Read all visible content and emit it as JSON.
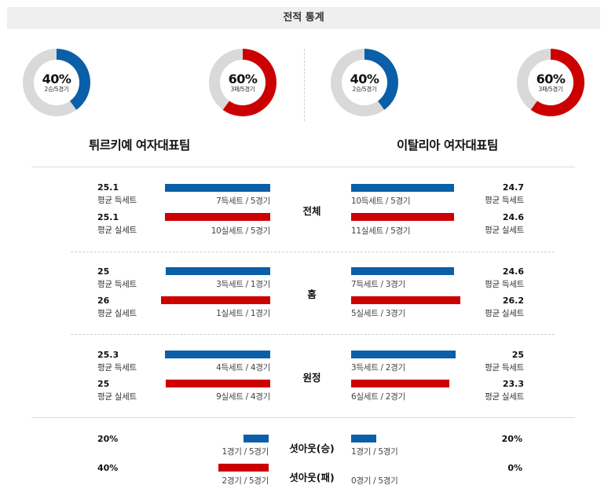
{
  "header": {
    "title": "전적 통계"
  },
  "colors": {
    "win": "#0b5ea8",
    "loss": "#cc0000",
    "track": "#d9d9d9"
  },
  "teams": {
    "left": {
      "name": "튀르키예 여자대표팀",
      "win_donut": {
        "pct": "40%",
        "sub": "2승/5경기",
        "fill": 0.4
      },
      "loss_donut": {
        "pct": "60%",
        "sub": "3패/5경기",
        "fill": 0.6
      }
    },
    "right": {
      "name": "이탈리아 여자대표팀",
      "win_donut": {
        "pct": "40%",
        "sub": "2승/5경기",
        "fill": 0.4
      },
      "loss_donut": {
        "pct": "60%",
        "sub": "3패/5경기",
        "fill": 0.6
      }
    }
  },
  "sections": {
    "overall": {
      "label": "전체",
      "left": {
        "won_value": "25.1",
        "won_label": "평균 득세트",
        "won_caption": "7득세트 / 5경기",
        "lost_value": "25.1",
        "lost_label": "평균 실세트",
        "lost_caption": "10실세트 / 5경기"
      },
      "right": {
        "won_value": "24.7",
        "won_label": "평균 득세트",
        "won_caption": "10득세트 / 5경기",
        "lost_value": "24.6",
        "lost_label": "평균 실세트",
        "lost_caption": "11실세트 / 5경기"
      }
    },
    "home": {
      "label": "홈",
      "left": {
        "won_value": "25",
        "won_label": "평균 득세트",
        "won_caption": "3득세트 / 1경기",
        "lost_value": "26",
        "lost_label": "평균 실세트",
        "lost_caption": "1실세트 / 1경기"
      },
      "right": {
        "won_value": "24.6",
        "won_label": "평균 득세트",
        "won_caption": "7득세트 / 3경기",
        "lost_value": "26.2",
        "lost_label": "평균 실세트",
        "lost_caption": "5실세트 / 3경기"
      }
    },
    "away": {
      "label": "원정",
      "left": {
        "won_value": "25.3",
        "won_label": "평균 득세트",
        "won_caption": "4득세트 / 4경기",
        "lost_value": "25",
        "lost_label": "평균 실세트",
        "lost_caption": "9실세트 / 4경기"
      },
      "right": {
        "won_value": "25",
        "won_label": "평균 득세트",
        "won_caption": "3득세트 / 2경기",
        "lost_value": "23.3",
        "lost_label": "평균 실세트",
        "lost_caption": "6실세트 / 2경기"
      }
    },
    "shutout": {
      "win_label": "셧아웃(승)",
      "loss_label": "셧아웃(패)",
      "left": {
        "win_pct": "20%",
        "win_caption": "1경기 / 5경기",
        "loss_pct": "40%",
        "loss_caption": "2경기 / 5경기"
      },
      "right": {
        "win_pct": "20%",
        "win_caption": "1경기 / 5경기",
        "loss_pct": "0%",
        "loss_caption": "0경기 / 5경기"
      }
    }
  }
}
